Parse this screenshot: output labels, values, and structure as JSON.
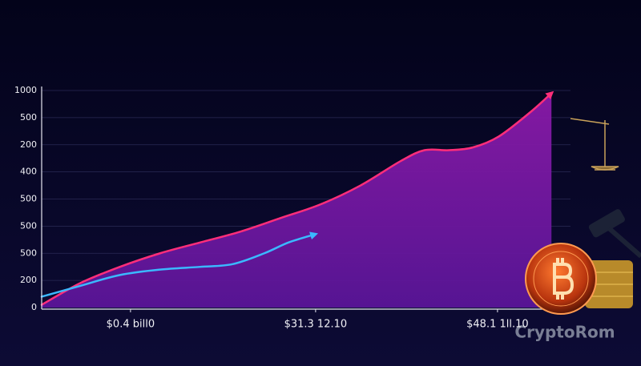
{
  "chart_data": {
    "type": "line",
    "xlim": [
      0,
      100
    ],
    "xticks": [
      {
        "value": 16.8,
        "label": "$0.4 bill0"
      },
      {
        "value": 51.8,
        "label": "$31.3 12.10"
      },
      {
        "value": 86.2,
        "label": "$48.1 1ll.10"
      }
    ],
    "ylim": [
      0,
      8
    ],
    "yticks": [
      {
        "value": 0,
        "label": "0"
      },
      {
        "value": 1,
        "label": "200"
      },
      {
        "value": 2,
        "label": "500"
      },
      {
        "value": 3,
        "label": "500"
      },
      {
        "value": 4,
        "label": "500"
      },
      {
        "value": 5,
        "label": "400"
      },
      {
        "value": 6,
        "label": "200"
      },
      {
        "value": 7,
        "label": "500"
      },
      {
        "value": 8,
        "label": "1000"
      }
    ],
    "grid": true,
    "series": [
      {
        "color": "#ff2e7a",
        "area": true,
        "x": [
          0,
          7.3,
          14.8,
          22.4,
          30,
          37.6,
          45.2,
          52.7,
          60.3,
          67.9,
          72.4,
          77,
          81.5,
          86.4,
          92.4,
          96.4
        ],
        "values": [
          0.1,
          0.9,
          1.5,
          2.0,
          2.4,
          2.8,
          3.3,
          3.8,
          4.5,
          5.4,
          5.8,
          5.8,
          5.9,
          6.3,
          7.2,
          7.9
        ]
      },
      {
        "color": "#3bb8ff",
        "area": false,
        "x": [
          0,
          7.3,
          14.8,
          22.4,
          30,
          36.1,
          42.1,
          46.7,
          51.7
        ],
        "values": [
          0.4,
          0.8,
          1.2,
          1.4,
          1.5,
          1.6,
          2.0,
          2.4,
          2.7
        ]
      }
    ],
    "watermark": "CryptoRom"
  }
}
